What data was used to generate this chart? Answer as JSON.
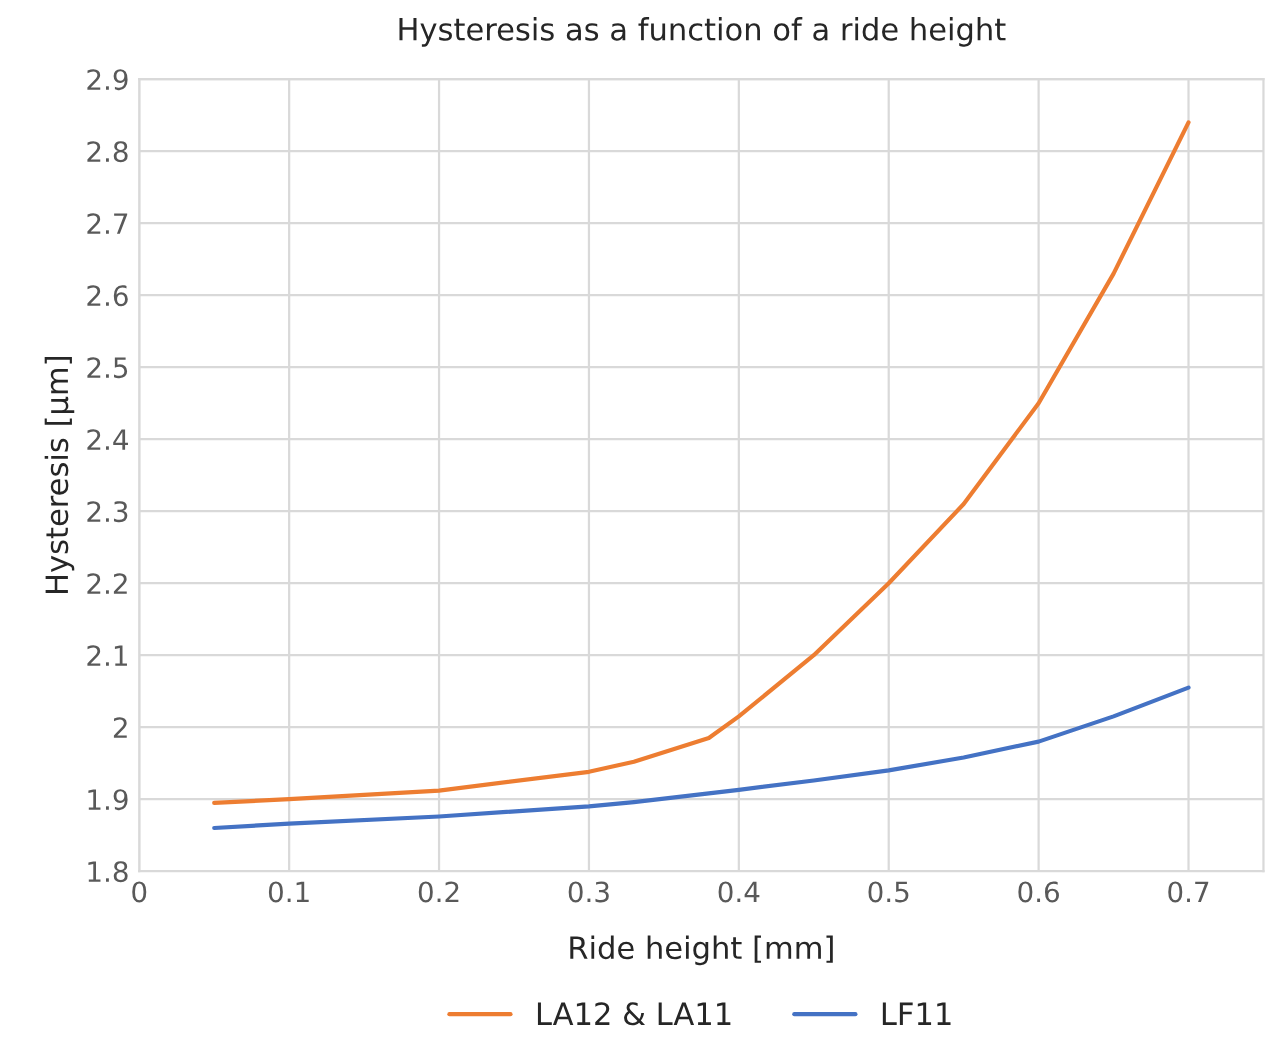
{
  "chart_data": {
    "type": "line",
    "title": "Hysteresis as a function of a ride height",
    "xlabel": "Ride height [mm]",
    "ylabel": "Hysteresis [µm]",
    "x": [
      0.05,
      0.1,
      0.2,
      0.3,
      0.33,
      0.38,
      0.4,
      0.45,
      0.5,
      0.55,
      0.6,
      0.65,
      0.7
    ],
    "series": [
      {
        "name": "LA12 & LA11",
        "color": "#ed7d31",
        "values": [
          1.895,
          1.9,
          1.912,
          1.938,
          1.952,
          1.985,
          2.015,
          2.1,
          2.2,
          2.31,
          2.45,
          2.63,
          2.84
        ]
      },
      {
        "name": "LF11",
        "color": "#4472c4",
        "values": [
          1.86,
          1.866,
          1.876,
          1.89,
          1.896,
          1.908,
          1.913,
          1.926,
          1.94,
          1.958,
          1.98,
          2.015,
          2.055
        ]
      }
    ],
    "xlim": [
      0,
      0.75
    ],
    "ylim": [
      1.8,
      2.9
    ],
    "xticks": [
      {
        "value": 0,
        "label": "0"
      },
      0.1,
      0.2,
      0.3,
      0.4,
      0.5,
      0.6,
      0.7
    ],
    "yticks": [
      1.8,
      1.9,
      {
        "value": 2.0,
        "label": "2"
      },
      2.1,
      2.2,
      2.3,
      2.4,
      2.5,
      2.6,
      2.7,
      2.8,
      2.9
    ],
    "grid": true,
    "legend": "bottom",
    "marker": "none",
    "line_style": "solid"
  }
}
